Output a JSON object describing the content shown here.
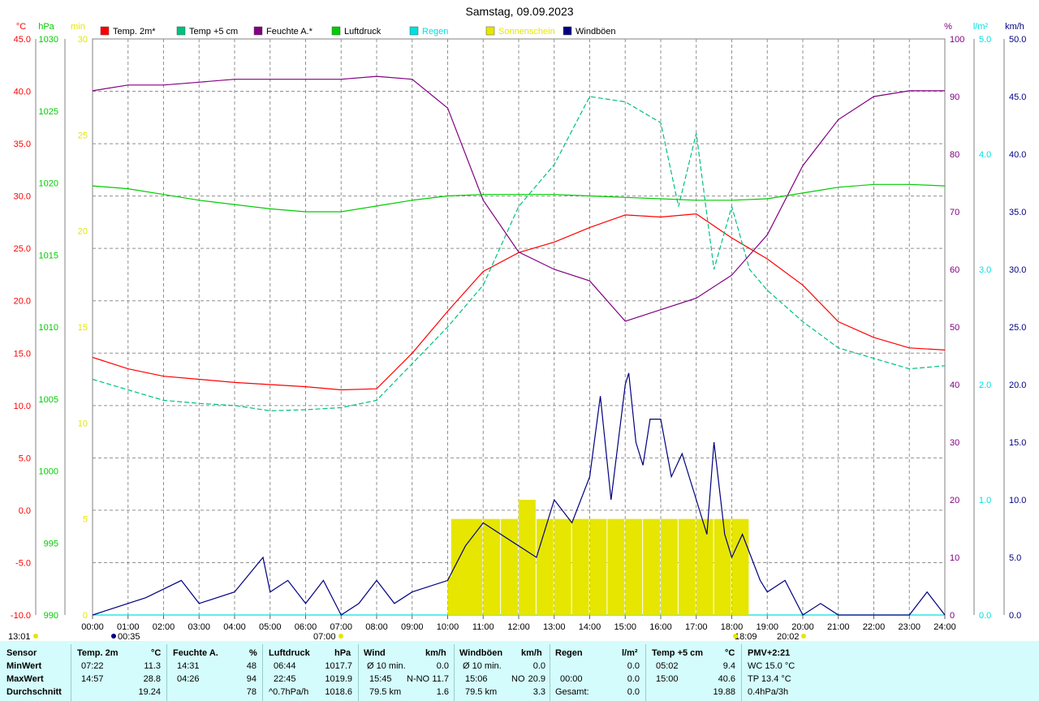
{
  "title": "Samstag, 09.09.2023",
  "axes": {
    "left_units": [
      {
        "text": "°C",
        "color": "#ff0000"
      },
      {
        "text": "hPa",
        "color": "#00cc00"
      },
      {
        "text": "min",
        "color": "#e6e600"
      }
    ],
    "right_units": [
      {
        "text": "%",
        "color": "#800080"
      },
      {
        "text": "l/m²",
        "color": "#00e0e0"
      },
      {
        "text": "km/h",
        "color": "#000080"
      }
    ],
    "temp_ticks": [
      "45.0",
      "40.0",
      "35.0",
      "30.0",
      "25.0",
      "20.0",
      "15.0",
      "10.0",
      "5.0",
      "0.0",
      "-5.0",
      "-10.0"
    ],
    "hpa_ticks": [
      "1030",
      "1025",
      "1020",
      "1015",
      "1010",
      "1005",
      "1000",
      "995",
      "990"
    ],
    "min_ticks": [
      "30",
      "25",
      "20",
      "15",
      "10",
      "5",
      "0"
    ],
    "humidity_ticks": [
      "100",
      "90",
      "80",
      "70",
      "60",
      "50",
      "40",
      "30",
      "20",
      "10",
      "0"
    ],
    "rain_ticks": [
      "5.0",
      "4.0",
      "3.0",
      "2.0",
      "1.0",
      "0.0"
    ],
    "kmh_ticks": [
      "50.0",
      "45.0",
      "40.0",
      "35.0",
      "30.0",
      "25.0",
      "20.0",
      "15.0",
      "10.0",
      "5.0",
      "0.0"
    ],
    "hour_ticks": [
      "00:00",
      "01:00",
      "02:00",
      "03:00",
      "04:00",
      "05:00",
      "06:00",
      "07:00",
      "08:00",
      "09:00",
      "10:00",
      "11:00",
      "12:00",
      "13:00",
      "14:00",
      "15:00",
      "16:00",
      "17:00",
      "18:00",
      "19:00",
      "20:00",
      "21:00",
      "22:00",
      "23:00",
      "24:00"
    ],
    "markers": [
      "00:35",
      "07:00",
      "18:09",
      "20:02",
      "13:01"
    ]
  },
  "legend": [
    {
      "label": "Temp. 2m*",
      "color": "#ff0000"
    },
    {
      "label": "Temp +5 cm",
      "color": "#00c080"
    },
    {
      "label": "Feuchte A.*",
      "color": "#800080"
    },
    {
      "label": "Luftdruck",
      "color": "#00cc00"
    },
    {
      "label": "Regen",
      "color": "#00e0e0"
    },
    {
      "label": "Sonnenschein",
      "color": "#e6e600"
    },
    {
      "label": "Windböen",
      "color": "#000080"
    }
  ],
  "chart_data": {
    "type": "line",
    "title": "Samstag, 09.09.2023",
    "x_unit": "hour",
    "series": [
      {
        "name": "Temp. 2m*",
        "unit": "°C",
        "points": [
          [
            0,
            14.6
          ],
          [
            1,
            13.5
          ],
          [
            2,
            12.8
          ],
          [
            3,
            12.5
          ],
          [
            4,
            12.2
          ],
          [
            5,
            12.0
          ],
          [
            6,
            11.8
          ],
          [
            7,
            11.5
          ],
          [
            8,
            11.6
          ],
          [
            9,
            15.0
          ],
          [
            10,
            19.0
          ],
          [
            11,
            22.8
          ],
          [
            12,
            24.6
          ],
          [
            13,
            25.6
          ],
          [
            14,
            27.0
          ],
          [
            15,
            28.2
          ],
          [
            16,
            28.0
          ],
          [
            17,
            28.3
          ],
          [
            18,
            26.0
          ],
          [
            18.5,
            25.0
          ],
          [
            19,
            24.0
          ],
          [
            20,
            21.5
          ],
          [
            21,
            18.0
          ],
          [
            22,
            16.5
          ],
          [
            23,
            15.5
          ],
          [
            24,
            15.3
          ]
        ]
      },
      {
        "name": "Temp +5 cm",
        "unit": "°C",
        "points": [
          [
            0,
            12.5
          ],
          [
            1,
            11.5
          ],
          [
            2,
            10.5
          ],
          [
            3,
            10.2
          ],
          [
            4,
            10.0
          ],
          [
            5,
            9.5
          ],
          [
            6,
            9.6
          ],
          [
            7,
            9.8
          ],
          [
            8,
            10.5
          ],
          [
            9,
            14.0
          ],
          [
            10,
            17.5
          ],
          [
            11,
            21.5
          ],
          [
            12,
            29.0
          ],
          [
            13,
            33.0
          ],
          [
            14,
            39.5
          ],
          [
            15,
            39.0
          ],
          [
            16,
            37.0
          ],
          [
            16.5,
            29.0
          ],
          [
            17,
            36.0
          ],
          [
            17.5,
            23.0
          ],
          [
            18,
            29.0
          ],
          [
            18.5,
            23.0
          ],
          [
            19,
            21.0
          ],
          [
            20,
            18.0
          ],
          [
            21,
            15.5
          ],
          [
            22,
            14.5
          ],
          [
            23,
            13.5
          ],
          [
            24,
            13.8
          ]
        ]
      },
      {
        "name": "Feuchte A.*",
        "unit": "%",
        "points": [
          [
            0,
            91
          ],
          [
            1,
            92
          ],
          [
            2,
            92
          ],
          [
            3,
            92.5
          ],
          [
            4,
            93
          ],
          [
            5,
            93
          ],
          [
            6,
            93
          ],
          [
            7,
            93
          ],
          [
            8,
            93.5
          ],
          [
            9,
            93
          ],
          [
            10,
            88
          ],
          [
            11,
            72
          ],
          [
            12,
            63
          ],
          [
            13,
            60
          ],
          [
            14,
            58
          ],
          [
            15,
            51
          ],
          [
            16,
            53
          ],
          [
            17,
            55
          ],
          [
            18,
            59
          ],
          [
            19,
            66
          ],
          [
            20,
            78
          ],
          [
            21,
            86
          ],
          [
            22,
            90
          ],
          [
            23,
            91
          ],
          [
            24,
            91
          ]
        ]
      },
      {
        "name": "Luftdruck",
        "unit": "hPa",
        "points": [
          [
            0,
            1019.8
          ],
          [
            1,
            1019.6
          ],
          [
            2,
            1019.2
          ],
          [
            3,
            1018.8
          ],
          [
            4,
            1018.5
          ],
          [
            5,
            1018.2
          ],
          [
            6,
            1018.0
          ],
          [
            7,
            1018.0
          ],
          [
            8,
            1018.4
          ],
          [
            9,
            1018.8
          ],
          [
            10,
            1019.1
          ],
          [
            11,
            1019.2
          ],
          [
            12,
            1019.2
          ],
          [
            13,
            1019.2
          ],
          [
            14,
            1019.1
          ],
          [
            15,
            1019.0
          ],
          [
            16,
            1018.9
          ],
          [
            17,
            1018.8
          ],
          [
            18,
            1018.8
          ],
          [
            19,
            1018.9
          ],
          [
            20,
            1019.3
          ],
          [
            21,
            1019.7
          ],
          [
            22,
            1019.9
          ],
          [
            23,
            1019.9
          ],
          [
            24,
            1019.8
          ]
        ]
      },
      {
        "name": "Regen",
        "unit": "l/m²",
        "points": [
          [
            0,
            0
          ],
          [
            24,
            0
          ]
        ]
      },
      {
        "name": "Sonnenschein",
        "unit": "min",
        "type": "bar",
        "points": [
          [
            10,
            2
          ],
          [
            10.1,
            5
          ],
          [
            10.3,
            4
          ],
          [
            10.5,
            5
          ],
          [
            11,
            5
          ],
          [
            11.5,
            5
          ],
          [
            12,
            6
          ],
          [
            12.5,
            5
          ],
          [
            13,
            5
          ],
          [
            13.5,
            5
          ],
          [
            14,
            5
          ],
          [
            14.5,
            5
          ],
          [
            15,
            5
          ],
          [
            15.5,
            5
          ],
          [
            16,
            5
          ],
          [
            16.5,
            5
          ],
          [
            17,
            5
          ],
          [
            17.5,
            5
          ],
          [
            18,
            5
          ]
        ]
      },
      {
        "name": "Windböen",
        "unit": "km/h",
        "points": [
          [
            0,
            0
          ],
          [
            1.5,
            1.5
          ],
          [
            2.5,
            3
          ],
          [
            3,
            1
          ],
          [
            4,
            2
          ],
          [
            4.8,
            5
          ],
          [
            5,
            2
          ],
          [
            5.5,
            3
          ],
          [
            6,
            1
          ],
          [
            6.5,
            3
          ],
          [
            7,
            0
          ],
          [
            7.5,
            1
          ],
          [
            8,
            3
          ],
          [
            8.5,
            1
          ],
          [
            9,
            2
          ],
          [
            10,
            3
          ],
          [
            10.5,
            6
          ],
          [
            11,
            8
          ],
          [
            11.5,
            7
          ],
          [
            12,
            6
          ],
          [
            12.5,
            5
          ],
          [
            13,
            10
          ],
          [
            13.5,
            8
          ],
          [
            14,
            12
          ],
          [
            14.3,
            19
          ],
          [
            14.6,
            10
          ],
          [
            15,
            20
          ],
          [
            15.1,
            21
          ],
          [
            15.3,
            15
          ],
          [
            15.5,
            13
          ],
          [
            15.7,
            17
          ],
          [
            16,
            17
          ],
          [
            16.3,
            12
          ],
          [
            16.6,
            14
          ],
          [
            17,
            10
          ],
          [
            17.3,
            7
          ],
          [
            17.5,
            15
          ],
          [
            17.8,
            7
          ],
          [
            18,
            5
          ],
          [
            18.3,
            7
          ],
          [
            18.8,
            3
          ],
          [
            19,
            2
          ],
          [
            19.5,
            3
          ],
          [
            20,
            0
          ],
          [
            20.5,
            1
          ],
          [
            21,
            0
          ],
          [
            23,
            0
          ],
          [
            23.5,
            2
          ],
          [
            24,
            0
          ]
        ]
      }
    ],
    "ylim": {
      "temp": [
        -10,
        45
      ],
      "hpa": [
        990,
        1030
      ],
      "min": [
        0,
        30
      ],
      "humidity": [
        0,
        100
      ],
      "rain": [
        0,
        5
      ],
      "kmh": [
        0,
        50
      ]
    },
    "grid": true
  },
  "summary": {
    "headers": {
      "sensor": "Sensor",
      "temp": "Temp. 2m",
      "temp_unit": "°C",
      "hum": "Feuchte A.",
      "hum_unit": "%",
      "press": "Luftdruck",
      "press_unit": "hPa",
      "wind": "Wind",
      "wind_unit": "km/h",
      "gust": "Windböen",
      "gust_unit": "km/h",
      "rain": "Regen",
      "rain_unit": "l/m²",
      "temp5": "Temp +5 cm",
      "temp5_unit": "°C",
      "pmv": "PMV+2:21"
    },
    "row_labels": [
      "MinWert",
      "MaxWert",
      "Durchschnitt"
    ],
    "temp": [
      [
        "07:22",
        "11.3"
      ],
      [
        "14:57",
        "28.8"
      ],
      [
        "",
        "19.24"
      ]
    ],
    "hum": [
      [
        "14:31",
        "48"
      ],
      [
        "04:26",
        "94"
      ],
      [
        "",
        "78"
      ]
    ],
    "press": [
      [
        "06:44",
        "1017.7"
      ],
      [
        "22:45",
        "1019.9"
      ],
      [
        "^0.7hPa/h",
        "1018.6"
      ]
    ],
    "wind": [
      [
        "Ø 10 min.",
        "",
        "0.0"
      ],
      [
        "15:45",
        "N-NO",
        "11.7"
      ],
      [
        "79.5 km",
        "",
        "1.6"
      ]
    ],
    "gust": [
      [
        "Ø 10 min.",
        "",
        "0.0"
      ],
      [
        "15:06",
        "NO",
        "20.9"
      ],
      [
        "79.5 km",
        "",
        "3.3"
      ]
    ],
    "rain": [
      [
        "",
        ""
      ],
      [
        "00:00",
        "0.0"
      ],
      [
        "Gesamt:",
        "0.0"
      ]
    ],
    "temp5": [
      [
        "05:02",
        "9.4"
      ],
      [
        "15:00",
        "40.6"
      ],
      [
        "",
        "19.88"
      ]
    ],
    "pmv": [
      "WC 15.0 °C",
      "TP 13.4 °C",
      "0.4hPa/3h"
    ],
    "rain_row0_val": "0.0"
  }
}
